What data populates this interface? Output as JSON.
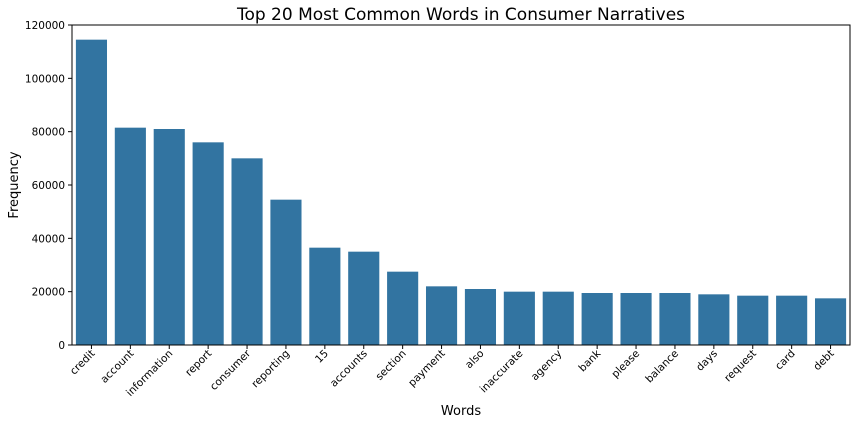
{
  "chart_data": {
    "type": "bar",
    "title": "Top 20 Most Common Words in Consumer Narratives",
    "xlabel": "Words",
    "ylabel": "Frequency",
    "categories": [
      "credit",
      "account",
      "information",
      "report",
      "consumer",
      "reporting",
      "15",
      "accounts",
      "section",
      "payment",
      "also",
      "inaccurate",
      "agency",
      "bank",
      "please",
      "balance",
      "days",
      "request",
      "card",
      "debt"
    ],
    "values": [
      114500,
      81500,
      81000,
      76000,
      70000,
      54500,
      36500,
      35000,
      27500,
      22000,
      21000,
      20000,
      20000,
      19500,
      19500,
      19500,
      19000,
      18500,
      18500,
      17500
    ],
    "ylim": [
      0,
      120000
    ],
    "yticks": [
      0,
      20000,
      40000,
      60000,
      80000,
      100000,
      120000
    ],
    "ytick_labels": [
      "0",
      "20000",
      "40000",
      "60000",
      "80000",
      "100000",
      "120000"
    ],
    "colors": {
      "bar": "#3274a1"
    },
    "grid": false,
    "legend": "none"
  }
}
